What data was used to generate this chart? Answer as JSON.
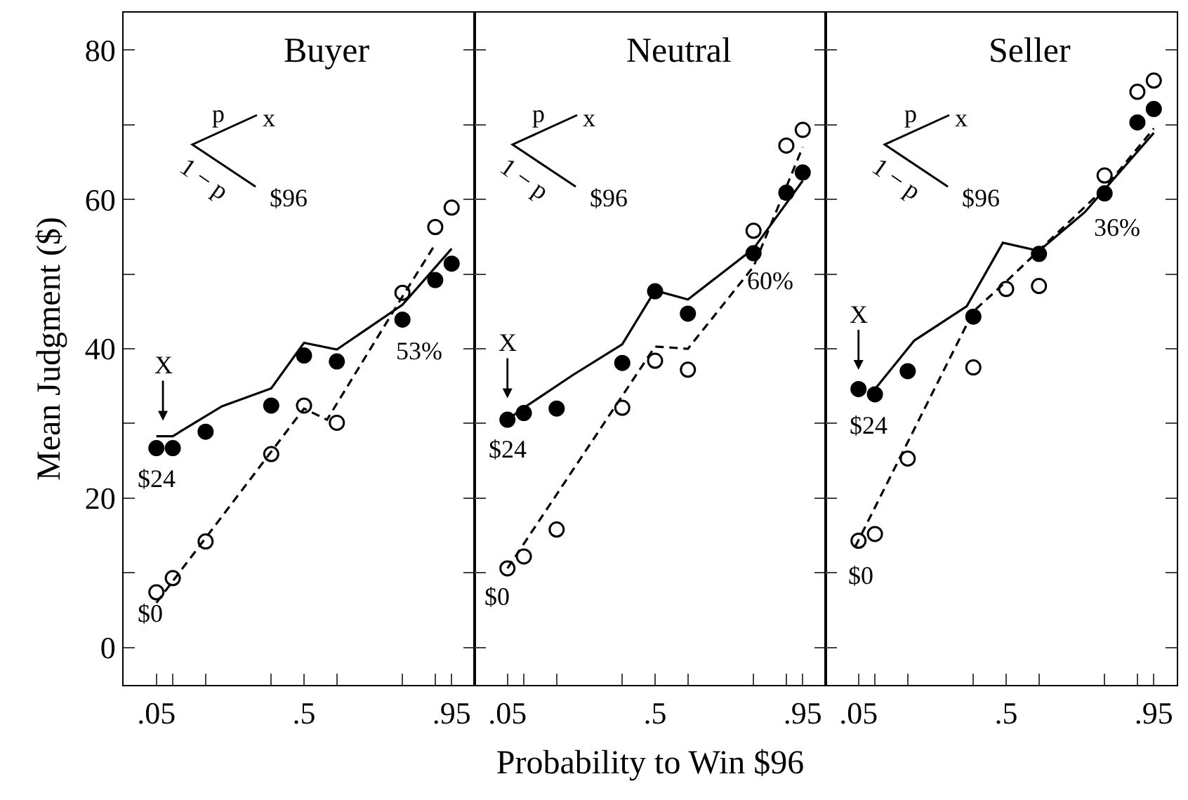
{
  "chart_data": [
    {
      "type": "scatter",
      "title": "Buyer",
      "ylabel": "Mean Judgment ($)",
      "x": [
        0.05,
        0.1,
        0.2,
        0.4,
        0.5,
        0.6,
        0.8,
        0.9,
        0.95
      ],
      "xlim": [
        -0.05,
        1.02
      ],
      "xticks": [
        {
          "value": 0.05,
          "label": ".05"
        },
        {
          "value": 0.1,
          "label": null
        },
        {
          "value": 0.2,
          "label": null
        },
        {
          "value": 0.4,
          "label": null
        },
        {
          "value": 0.5,
          "label": ".5"
        },
        {
          "value": 0.6,
          "label": null
        },
        {
          "value": 0.8,
          "label": null
        },
        {
          "value": 0.9,
          "label": null
        },
        {
          "value": 0.95,
          "label": ".95"
        }
      ],
      "ylim": [
        -5,
        85
      ],
      "yticks": [
        0,
        {
          "value": 10,
          "label": null
        },
        20,
        {
          "value": 30,
          "label": null
        },
        40,
        {
          "value": 50,
          "label": null
        },
        60,
        {
          "value": 70,
          "label": null
        },
        80
      ],
      "series": [
        {
          "type": "scatter",
          "marker": "circle",
          "color": "#000000",
          "values": [
            26.7,
            26.7,
            28.9,
            32.4,
            39.1,
            38.3,
            43.9,
            49.2,
            51.4
          ]
        },
        {
          "type": "scatter",
          "marker": "circle-open",
          "color": "#000000",
          "values": [
            7.4,
            9.3,
            14.2,
            25.9,
            32.4,
            30.1,
            47.5,
            56.3,
            58.9
          ]
        },
        {
          "type": "line",
          "line_style": "solid",
          "color": "#000000",
          "x": [
            0.05,
            0.1,
            0.25,
            0.4,
            0.5,
            0.6,
            0.8,
            0.95
          ],
          "values": [
            28.3,
            28.3,
            32.3,
            34.7,
            40.8,
            39.9,
            45.9,
            53.4
          ]
        },
        {
          "type": "line",
          "line_style": "dashed",
          "color": "#000000",
          "x": [
            0.05,
            0.5,
            0.57,
            0.8,
            0.9
          ],
          "values": [
            6,
            32,
            30.5,
            47,
            54
          ]
        }
      ],
      "annotations": [
        "p",
        "x",
        "1 − p",
        "$96",
        "X",
        "$24",
        "$0",
        "53%"
      ]
    },
    {
      "type": "scatter",
      "title": "Neutral",
      "xlabel": "Probability to Win $96",
      "tick_labels": "x",
      "x": [
        0.05,
        0.1,
        0.2,
        0.4,
        0.5,
        0.6,
        0.8,
        0.9,
        0.95
      ],
      "xlim": [
        -0.05,
        1.02
      ],
      "xticks": [
        {
          "value": 0.05,
          "label": ".05"
        },
        {
          "value": 0.1,
          "label": null
        },
        {
          "value": 0.2,
          "label": null
        },
        {
          "value": 0.4,
          "label": null
        },
        {
          "value": 0.5,
          "label": ".5"
        },
        {
          "value": 0.6,
          "label": null
        },
        {
          "value": 0.8,
          "label": null
        },
        {
          "value": 0.9,
          "label": null
        },
        {
          "value": 0.95,
          "label": ".95"
        }
      ],
      "ylim": [
        -5,
        85
      ],
      "yticks": [
        0,
        {
          "value": 10,
          "label": null
        },
        20,
        {
          "value": 30,
          "label": null
        },
        40,
        {
          "value": 50,
          "label": null
        },
        60,
        {
          "value": 70,
          "label": null
        },
        80
      ],
      "series": [
        {
          "type": "scatter",
          "marker": "circle",
          "color": "#000000",
          "values": [
            30.5,
            31.4,
            32.0,
            38.1,
            47.7,
            44.7,
            52.8,
            60.9,
            63.6
          ]
        },
        {
          "type": "scatter",
          "marker": "circle-open",
          "color": "#000000",
          "values": [
            10.6,
            12.2,
            15.8,
            32.1,
            38.4,
            37.2,
            55.8,
            67.2,
            69.3
          ]
        },
        {
          "type": "line",
          "line_style": "solid",
          "color": "#000000",
          "x": [
            0.05,
            0.1,
            0.25,
            0.4,
            0.5,
            0.6,
            0.8,
            0.95
          ],
          "values": [
            30.5,
            32.1,
            36.5,
            40.6,
            47.8,
            46.6,
            53.4,
            62.5
          ]
        },
        {
          "type": "line",
          "line_style": "dashed",
          "color": "#000000",
          "x": [
            0.05,
            0.5,
            0.6,
            0.8,
            0.95
          ],
          "values": [
            10.6,
            40.3,
            40,
            51,
            67
          ]
        }
      ],
      "annotations": [
        "p",
        "x",
        "1 − p",
        "$96",
        "X",
        "$24",
        "$0",
        "60%"
      ]
    },
    {
      "type": "scatter",
      "title": "Seller",
      "tick_labels": "x",
      "x": [
        0.05,
        0.1,
        0.2,
        0.4,
        0.5,
        0.6,
        0.8,
        0.9,
        0.95
      ],
      "xlim": [
        -0.05,
        1.02
      ],
      "xticks": [
        {
          "value": 0.05,
          "label": ".05"
        },
        {
          "value": 0.1,
          "label": null
        },
        {
          "value": 0.2,
          "label": null
        },
        {
          "value": 0.4,
          "label": null
        },
        {
          "value": 0.5,
          "label": ".5"
        },
        {
          "value": 0.6,
          "label": null
        },
        {
          "value": 0.8,
          "label": null
        },
        {
          "value": 0.9,
          "label": null
        },
        {
          "value": 0.95,
          "label": ".95"
        }
      ],
      "ylim": [
        -5,
        85
      ],
      "yticks": [
        0,
        {
          "value": 10,
          "label": null
        },
        20,
        {
          "value": 30,
          "label": null
        },
        40,
        {
          "value": 50,
          "label": null
        },
        60,
        {
          "value": 70,
          "label": null
        },
        80
      ],
      "series": [
        {
          "type": "scatter",
          "marker": "circle",
          "color": "#000000",
          "values": [
            34.6,
            33.9,
            37.0,
            44.3,
            null,
            52.7,
            60.8,
            70.3,
            72.1
          ]
        },
        {
          "type": "scatter",
          "marker": "circle-open",
          "color": "#000000",
          "values": [
            14.3,
            15.2,
            25.3,
            37.5,
            48,
            48.4,
            63.2,
            74.4,
            75.9
          ]
        },
        {
          "type": "line",
          "line_style": "solid",
          "color": "#000000",
          "x": [
            0.1,
            0.22,
            0.38,
            0.49,
            0.6,
            0.74,
            0.95
          ],
          "values": [
            34.6,
            41.1,
            45.7,
            54.2,
            53.1,
            58.3,
            68.9
          ]
        },
        {
          "type": "line",
          "line_style": "dashed",
          "color": "#000000",
          "x": [
            0.04,
            0.4,
            0.5,
            0.8,
            0.95
          ],
          "values": [
            13.5,
            45,
            49,
            61.5,
            69.5
          ]
        }
      ],
      "annotations": [
        "p",
        "x",
        "1 − p",
        "$96",
        "X",
        "$24",
        "$0",
        "36%"
      ]
    }
  ]
}
